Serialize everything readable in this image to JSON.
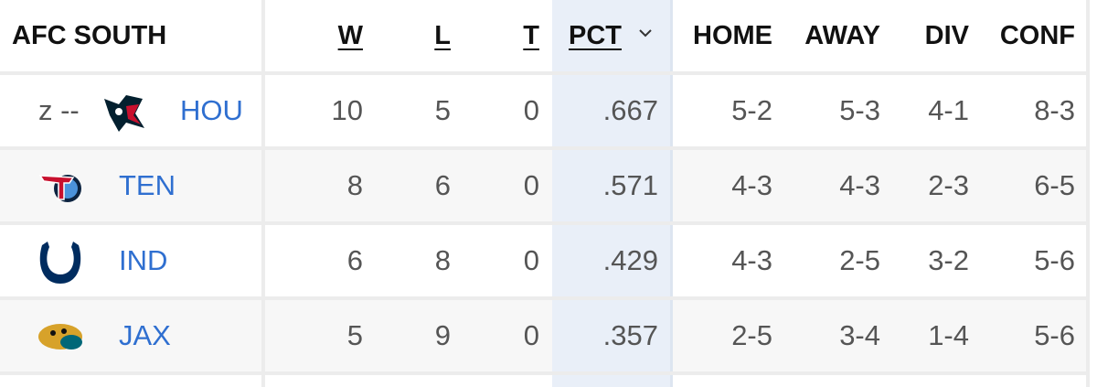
{
  "header": {
    "title": "AFC SOUTH",
    "columns": [
      "W",
      "L",
      "T",
      "PCT",
      "HOME",
      "AWAY",
      "DIV",
      "CONF"
    ]
  },
  "rows": [
    {
      "prefix": "z --",
      "team": "HOU",
      "cells": [
        "10",
        "5",
        "0",
        ".667",
        "5-2",
        "5-3",
        "4-1",
        "8-3"
      ]
    },
    {
      "team": "TEN",
      "cells": [
        "8",
        "6",
        "0",
        ".571",
        "4-3",
        "4-3",
        "2-3",
        "6-5"
      ]
    },
    {
      "team": "IND",
      "cells": [
        "6",
        "8",
        "0",
        ".429",
        "4-3",
        "2-5",
        "3-2",
        "5-6"
      ]
    },
    {
      "team": "JAX",
      "cells": [
        "5",
        "9",
        "0",
        ".357",
        "2-5",
        "3-4",
        "1-4",
        "5-6"
      ]
    }
  ]
}
